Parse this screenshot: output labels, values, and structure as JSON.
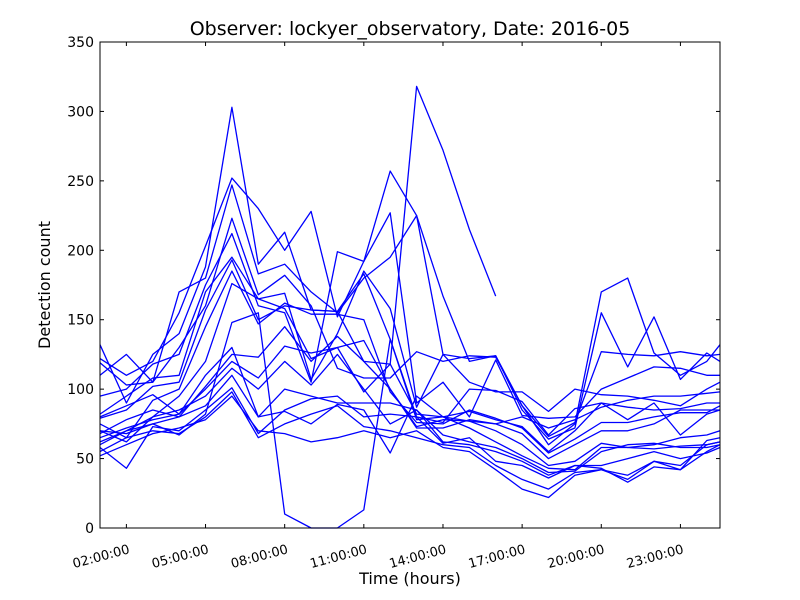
{
  "chart_data": {
    "type": "line",
    "title": "Observer: lockyer_observatory, Date: 2016-05",
    "xlabel": "Time (hours)",
    "ylabel": "Detection count",
    "xlim": [
      1,
      24.5
    ],
    "ylim": [
      0,
      350
    ],
    "grid": false,
    "legend": "none",
    "line_color": "#0000ff",
    "x_ticks": [
      2,
      5,
      8,
      11,
      14,
      17,
      20,
      23
    ],
    "x_tick_labels": [
      "02:00:00",
      "05:00:00",
      "08:00:00",
      "11:00:00",
      "14:00:00",
      "17:00:00",
      "20:00:00",
      "23:00:00"
    ],
    "y_ticks": [
      0,
      50,
      100,
      150,
      200,
      250,
      300,
      350
    ],
    "y_tick_labels": [
      "0",
      "50",
      "100",
      "150",
      "200",
      "250",
      "300",
      "350"
    ],
    "x": [
      1,
      2,
      3,
      4,
      5,
      6,
      7,
      8,
      9,
      10,
      11,
      12,
      13,
      14,
      15,
      16,
      17,
      18,
      19,
      20,
      21,
      22,
      23,
      24,
      24.5
    ],
    "series": [
      {
        "values": [
          132,
          90,
          125,
          140,
          188,
          303,
          190,
          213,
          157,
          156,
          120,
          118,
          318,
          272,
          215,
          167,
          null,
          null,
          null,
          null,
          null,
          null,
          null,
          null,
          null
        ]
      },
      {
        "values": [
          122,
          110,
          120,
          155,
          203,
          252,
          230,
          200,
          228,
          152,
          192,
          257,
          225,
          167,
          120,
          124,
          88,
          60,
          75,
          170,
          180,
          126,
          110,
          120,
          132
        ]
      },
      {
        "values": [
          119,
          103,
          105,
          170,
          180,
          247,
          183,
          190,
          170,
          155,
          180,
          195,
          225,
          125,
          122,
          124,
          85,
          64,
          72,
          155,
          116,
          152,
          107,
          126,
          120
        ]
      },
      {
        "values": [
          110,
          125,
          105,
          130,
          160,
          223,
          168,
          182,
          160,
          115,
          108,
          108,
          127,
          120,
          124,
          123,
          88,
          66,
          76,
          127,
          125,
          124,
          127,
          124,
          125
        ]
      },
      {
        "values": [
          95,
          100,
          118,
          125,
          175,
          212,
          160,
          155,
          105,
          199,
          192,
          227,
          90,
          105,
          80,
          121,
          81,
          79,
          80,
          100,
          108,
          116,
          115,
          110,
          110
        ]
      },
      {
        "values": [
          82,
          95,
          108,
          110,
          170,
          195,
          165,
          169,
          107,
          140,
          185,
          158,
          87,
          125,
          105,
          98,
          98,
          84,
          100,
          96,
          95,
          92,
          88,
          100,
          105
        ]
      },
      {
        "values": [
          79,
          85,
          102,
          105,
          157,
          193,
          150,
          160,
          157,
          156,
          183,
          136,
          80,
          76,
          100,
          99,
          91,
          67,
          86,
          90,
          87,
          85,
          86,
          90,
          90
        ]
      },
      {
        "values": [
          75,
          65,
          92,
          100,
          145,
          185,
          147,
          162,
          154,
          154,
          150,
          98,
          76,
          75,
          85,
          79,
          72,
          54,
          64,
          76,
          76,
          80,
          83,
          83,
          88
        ]
      },
      {
        "values": [
          70,
          62,
          80,
          95,
          120,
          176,
          165,
          158,
          122,
          130,
          135,
          100,
          72,
          72,
          78,
          75,
          68,
          50,
          60,
          70,
          70,
          75,
          85,
          85,
          85
        ]
      },
      {
        "values": [
          68,
          78,
          85,
          80,
          102,
          125,
          123,
          145,
          120,
          138,
          120,
          100,
          73,
          78,
          77,
          70,
          60,
          45,
          48,
          61,
          58,
          60,
          65,
          67,
          70
        ]
      },
      {
        "values": [
          65,
          72,
          78,
          82,
          100,
          120,
          108,
          131,
          126,
          130,
          98,
          118,
          82,
          80,
          72,
          62,
          52,
          43,
          42,
          58,
          58,
          57,
          59,
          60,
          62
        ]
      },
      {
        "values": [
          62,
          70,
          80,
          85,
          95,
          115,
          100,
          120,
          103,
          125,
          100,
          75,
          85,
          67,
          62,
          58,
          50,
          40,
          41,
          55,
          60,
          61,
          58,
          58,
          60
        ]
      },
      {
        "values": [
          60,
          70,
          75,
          80,
          88,
          110,
          80,
          100,
          95,
          90,
          90,
          90,
          85,
          62,
          60,
          55,
          48,
          38,
          45,
          45,
          50,
          55,
          50,
          54,
          58
        ]
      },
      {
        "values": [
          58,
          43,
          73,
          70,
          85,
          101,
          68,
          85,
          93,
          95,
          80,
          82,
          80,
          61,
          65,
          48,
          45,
          36,
          45,
          43,
          33,
          44,
          42,
          63,
          65
        ]
      },
      {
        "values": [
          55,
          65,
          70,
          68,
          80,
          98,
          65,
          75,
          82,
          88,
          73,
          70,
          65,
          60,
          58,
          45,
          35,
          28,
          40,
          42,
          38,
          48,
          45,
          60,
          62
        ]
      },
      {
        "values": [
          52,
          60,
          68,
          72,
          78,
          95,
          70,
          68,
          62,
          65,
          70,
          65,
          70,
          58,
          55,
          42,
          28,
          22,
          38,
          42,
          35,
          48,
          42,
          55,
          60
        ]
      },
      {
        "values": [
          70,
          68,
          75,
          67,
          82,
          148,
          155,
          10,
          0,
          0,
          13,
          136,
          78,
          80,
          84,
          78,
          73,
          55,
          70,
          90,
          78,
          90,
          67,
          82,
          85
        ]
      },
      {
        "values": [
          80,
          88,
          96,
          82,
          110,
          130,
          80,
          84,
          75,
          89,
          85,
          54,
          95,
          80,
          77,
          75,
          80,
          72,
          78,
          87,
          92,
          95,
          95,
          97,
          98
        ]
      }
    ]
  }
}
